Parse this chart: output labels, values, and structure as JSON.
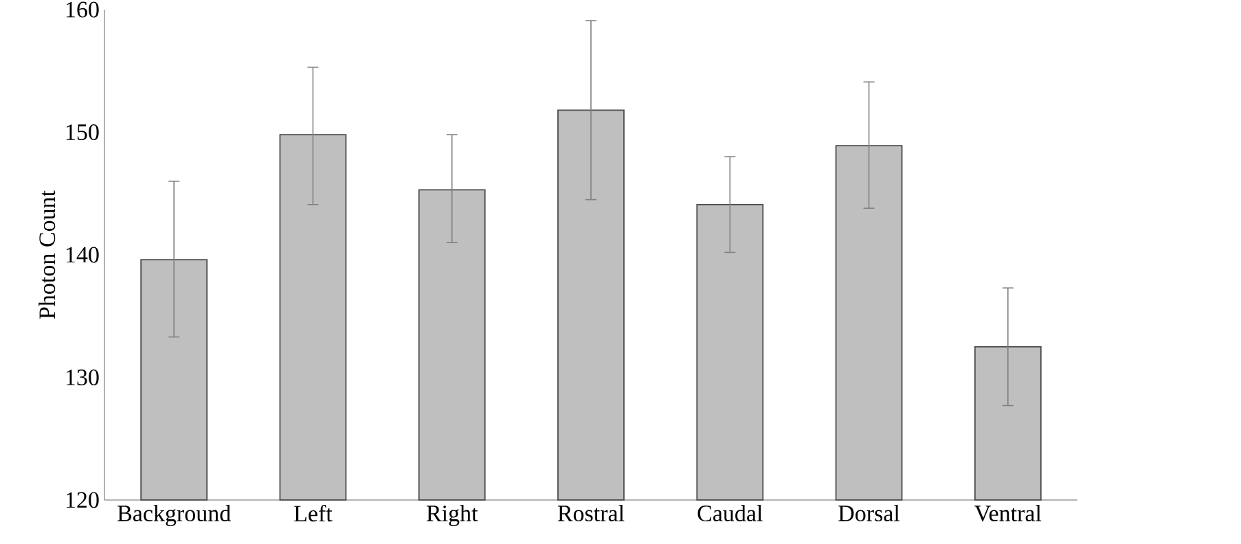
{
  "chart_data": {
    "type": "bar",
    "ylabel": "Photon Count",
    "categories": [
      "Background",
      "Left",
      "Right",
      "Rostral",
      "Caudal",
      "Dorsal",
      "Ventral"
    ],
    "values": [
      139.6,
      149.8,
      145.3,
      151.8,
      144.1,
      148.9,
      132.5
    ],
    "errors": [
      [
        133.3,
        146.0
      ],
      [
        144.1,
        155.3
      ],
      [
        141.0,
        149.8
      ],
      [
        144.5,
        159.1
      ],
      [
        140.2,
        148.0
      ],
      [
        143.8,
        154.1
      ],
      [
        127.7,
        137.3
      ]
    ],
    "color": "#bfbfbf",
    "ylim": [
      120,
      160
    ],
    "yticks": [
      120,
      130,
      140,
      150,
      160
    ]
  }
}
